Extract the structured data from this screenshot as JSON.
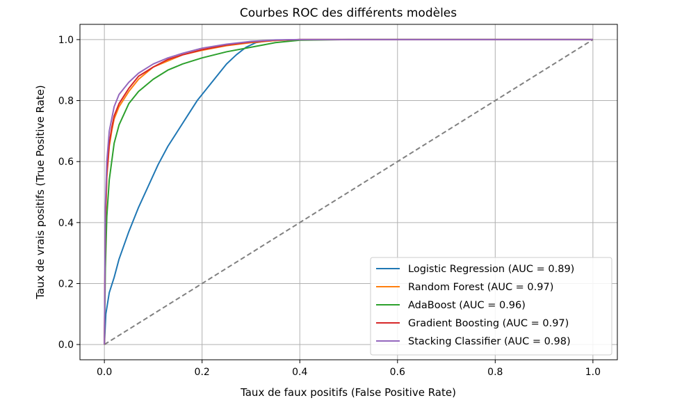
{
  "chart_data": {
    "type": "line",
    "title": "Courbes ROC des différents modèles",
    "xlabel": "Taux de faux positifs (False Positive Rate)",
    "ylabel": "Taux de vrais positifs (True Positive Rate)",
    "xlim": [
      -0.05,
      1.05
    ],
    "ylim": [
      -0.05,
      1.05
    ],
    "xticks": [
      "0.0",
      "0.2",
      "0.4",
      "0.6",
      "0.8",
      "1.0"
    ],
    "yticks": [
      "0.0",
      "0.2",
      "0.4",
      "0.6",
      "0.8",
      "1.0"
    ],
    "grid": true,
    "legend_position": "lower-right",
    "series": [
      {
        "name": "Logistic Regression (AUC = 0.89)",
        "color": "#1f77b4",
        "x": [
          0,
          0.003,
          0.01,
          0.02,
          0.03,
          0.05,
          0.07,
          0.09,
          0.11,
          0.13,
          0.15,
          0.17,
          0.19,
          0.21,
          0.23,
          0.25,
          0.27,
          0.29,
          0.31,
          0.33,
          0.36,
          0.4,
          0.5,
          0.6,
          0.7,
          0.8,
          0.9,
          1.0
        ],
        "y": [
          0,
          0.1,
          0.17,
          0.22,
          0.28,
          0.37,
          0.45,
          0.52,
          0.59,
          0.65,
          0.7,
          0.75,
          0.8,
          0.84,
          0.88,
          0.92,
          0.95,
          0.975,
          0.99,
          0.995,
          0.998,
          1.0,
          1.0,
          1.0,
          1.0,
          1.0,
          1.0,
          1.0
        ]
      },
      {
        "name": "Random Forest (AUC = 0.97)",
        "color": "#ff7f0e",
        "x": [
          0,
          0.002,
          0.005,
          0.01,
          0.015,
          0.02,
          0.03,
          0.05,
          0.07,
          0.1,
          0.13,
          0.16,
          0.2,
          0.25,
          0.3,
          0.35,
          0.4,
          0.5,
          0.6,
          0.7,
          0.8,
          0.9,
          1.0
        ],
        "y": [
          0,
          0.38,
          0.55,
          0.65,
          0.7,
          0.74,
          0.78,
          0.83,
          0.87,
          0.91,
          0.93,
          0.95,
          0.965,
          0.98,
          0.99,
          0.997,
          1.0,
          1.0,
          1.0,
          1.0,
          1.0,
          1.0,
          1.0
        ]
      },
      {
        "name": "AdaBoost (AUC = 0.96)",
        "color": "#2ca02c",
        "x": [
          0,
          0.002,
          0.005,
          0.01,
          0.02,
          0.03,
          0.05,
          0.07,
          0.1,
          0.13,
          0.16,
          0.2,
          0.25,
          0.3,
          0.35,
          0.4,
          0.5,
          0.6,
          0.7,
          0.8,
          0.9,
          1.0
        ],
        "y": [
          0,
          0.25,
          0.42,
          0.54,
          0.66,
          0.72,
          0.79,
          0.83,
          0.87,
          0.9,
          0.92,
          0.94,
          0.96,
          0.975,
          0.99,
          0.998,
          1.0,
          1.0,
          1.0,
          1.0,
          1.0,
          1.0
        ]
      },
      {
        "name": "Gradient Boosting (AUC = 0.97)",
        "color": "#d62728",
        "x": [
          0,
          0.002,
          0.005,
          0.01,
          0.015,
          0.02,
          0.03,
          0.05,
          0.07,
          0.1,
          0.13,
          0.16,
          0.2,
          0.25,
          0.3,
          0.35,
          0.4,
          0.5,
          0.6,
          0.7,
          0.8,
          0.9,
          1.0
        ],
        "y": [
          0,
          0.4,
          0.56,
          0.66,
          0.71,
          0.75,
          0.79,
          0.84,
          0.88,
          0.91,
          0.935,
          0.95,
          0.967,
          0.982,
          0.992,
          0.998,
          1.0,
          1.0,
          1.0,
          1.0,
          1.0,
          1.0,
          1.0
        ]
      },
      {
        "name": "Stacking Classifier (AUC = 0.98)",
        "color": "#9467bd",
        "x": [
          0,
          0.002,
          0.005,
          0.01,
          0.015,
          0.02,
          0.03,
          0.05,
          0.07,
          0.1,
          0.13,
          0.16,
          0.2,
          0.25,
          0.3,
          0.35,
          0.4,
          0.5,
          0.6,
          0.7,
          0.8,
          0.9,
          1.0
        ],
        "y": [
          0,
          0.45,
          0.6,
          0.7,
          0.74,
          0.78,
          0.82,
          0.86,
          0.89,
          0.92,
          0.94,
          0.955,
          0.972,
          0.985,
          0.994,
          0.999,
          1.0,
          1.0,
          1.0,
          1.0,
          1.0,
          1.0,
          1.0
        ]
      },
      {
        "name": "",
        "color": "#808080",
        "dashed": true,
        "x": [
          0,
          1
        ],
        "y": [
          0,
          1
        ]
      }
    ]
  }
}
